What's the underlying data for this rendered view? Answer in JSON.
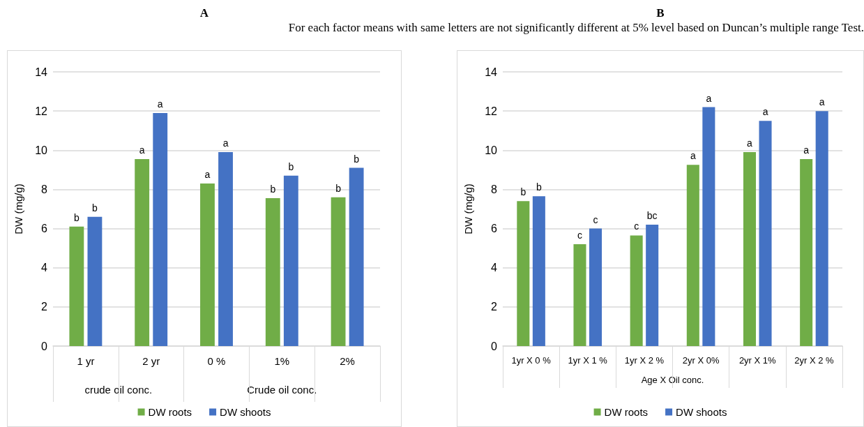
{
  "chart_data": [
    {
      "type": "bar",
      "title": "A",
      "ylabel": "DW (mg/g)",
      "categories": [
        "1 yr",
        "2 yr",
        "0 %",
        "1%",
        "2%"
      ],
      "series": [
        {
          "name": "DW roots",
          "color": "#70ad47",
          "values": [
            6.1,
            9.55,
            8.3,
            7.55,
            7.6
          ],
          "value_labels": [
            "b",
            "a",
            "a",
            "b",
            "b"
          ]
        },
        {
          "name": "DW shoots",
          "color": "#4472c4",
          "values": [
            6.6,
            11.9,
            9.9,
            8.7,
            9.1
          ],
          "value_labels": [
            "b",
            "a",
            "a",
            "b",
            "b"
          ]
        }
      ],
      "annotations": [
        "crude oil conc.",
        "Crude oil conc."
      ],
      "ylim": [
        0,
        14
      ],
      "yticks": [
        0,
        2,
        4,
        6,
        8,
        10,
        12,
        14
      ],
      "grid": "y",
      "legend": "bottom"
    },
    {
      "type": "bar",
      "title": "B",
      "subtitle": "For each factor means with same letters are not significantly different at 5% level based on Duncan’s multiple range Test.",
      "ylabel": "DW (mg/g)",
      "xlabel": "Age X Oil conc.",
      "categories": [
        "1yr X 0 %",
        "1yr X 1 %",
        "1yr X 2 %",
        "2yr X 0%",
        "2yr X 1%",
        "2yr X 2 %"
      ],
      "series": [
        {
          "name": "DW roots",
          "color": "#70ad47",
          "values": [
            7.4,
            5.2,
            5.65,
            9.25,
            9.9,
            9.55
          ],
          "value_labels": [
            "b",
            "c",
            "c",
            "a",
            "a",
            "a"
          ]
        },
        {
          "name": "DW shoots",
          "color": "#4472c4",
          "values": [
            7.65,
            6.0,
            6.2,
            12.2,
            11.5,
            12.0
          ],
          "value_labels": [
            "b",
            "c",
            "bc",
            "a",
            "a",
            "a"
          ]
        }
      ],
      "ylim": [
        0,
        14
      ],
      "yticks": [
        0,
        2,
        4,
        6,
        8,
        10,
        12,
        14
      ],
      "grid": "y",
      "legend": "bottom"
    }
  ]
}
